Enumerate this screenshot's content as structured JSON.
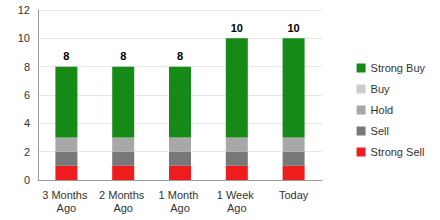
{
  "chart_data": {
    "type": "bar",
    "stacked": true,
    "grid": true,
    "legend": "right",
    "categories": [
      "3 Months Ago",
      "2 Months Ago",
      "1 Month Ago",
      "1 Week Ago",
      "Today"
    ],
    "series": [
      {
        "name": "Strong Sell",
        "color": "#ee1c1c",
        "values": [
          1,
          1,
          1,
          1,
          1
        ]
      },
      {
        "name": "Sell",
        "color": "#787878",
        "values": [
          1,
          1,
          1,
          1,
          1
        ]
      },
      {
        "name": "Hold",
        "color": "#a8a8a8",
        "values": [
          1,
          1,
          1,
          1,
          1
        ]
      },
      {
        "name": "Buy",
        "color": "#cccccc",
        "values": [
          0,
          0,
          0,
          0,
          0
        ]
      },
      {
        "name": "Strong Buy",
        "color": "#168a16",
        "values": [
          5,
          5,
          5,
          7,
          7
        ]
      }
    ],
    "totals": [
      8,
      8,
      8,
      10,
      10
    ],
    "ylim": [
      0,
      12
    ],
    "yticks": [
      0,
      2,
      4,
      6,
      8,
      10,
      12
    ]
  }
}
